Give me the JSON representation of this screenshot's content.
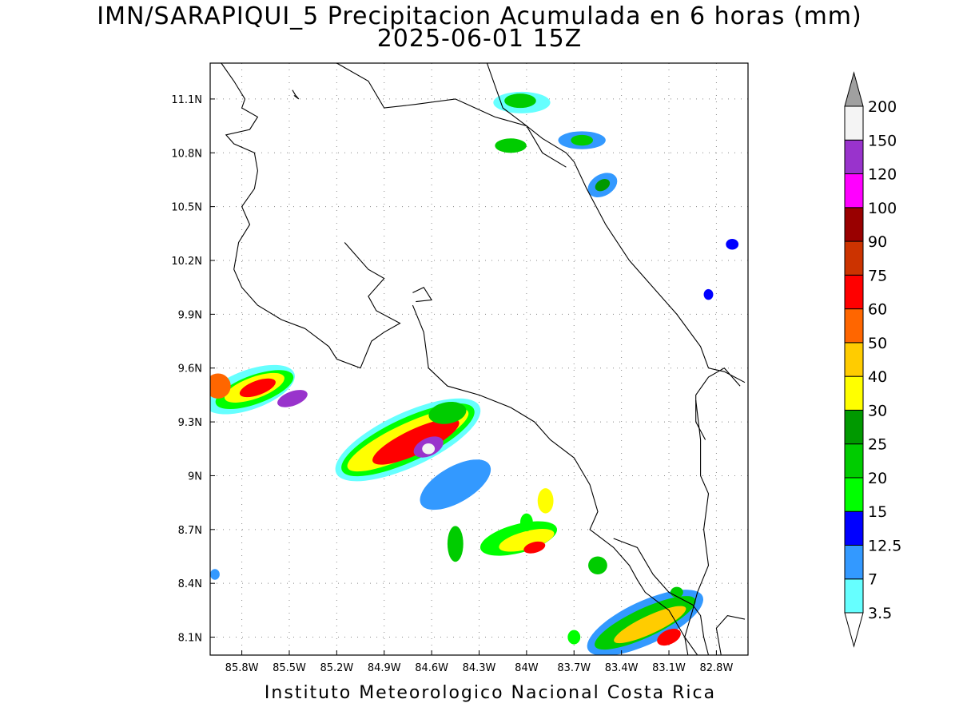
{
  "figure": {
    "title_line1": "IMN/SARAPIQUI_5 Precipitacion Acumulada en 6 horas (mm)",
    "title_line2": "2025-06-01 15Z",
    "footer": "Instituto Meteorologico Nacional Costa Rica"
  },
  "map": {
    "lon_range": [
      -86.0,
      -82.6
    ],
    "lat_range": [
      8.0,
      11.3
    ],
    "lon_ticks": [
      {
        "value": -85.8,
        "label": "85.8W"
      },
      {
        "value": -85.5,
        "label": "85.5W"
      },
      {
        "value": -85.2,
        "label": "85.2W"
      },
      {
        "value": -84.9,
        "label": "84.9W"
      },
      {
        "value": -84.6,
        "label": "84.6W"
      },
      {
        "value": -84.3,
        "label": "84.3W"
      },
      {
        "value": -84.0,
        "label": "84W"
      },
      {
        "value": -83.7,
        "label": "83.7W"
      },
      {
        "value": -83.4,
        "label": "83.4W"
      },
      {
        "value": -83.1,
        "label": "83.1W"
      },
      {
        "value": -82.8,
        "label": "82.8W"
      }
    ],
    "lat_ticks": [
      {
        "value": 11.1,
        "label": "11.1N"
      },
      {
        "value": 10.8,
        "label": "10.8N"
      },
      {
        "value": 10.5,
        "label": "10.5N"
      },
      {
        "value": 10.2,
        "label": "10.2N"
      },
      {
        "value": 9.9,
        "label": "9.9N"
      },
      {
        "value": 9.6,
        "label": "9.6N"
      },
      {
        "value": 9.3,
        "label": "9.3N"
      },
      {
        "value": 9.0,
        "label": "9N"
      },
      {
        "value": 8.7,
        "label": "8.7N"
      },
      {
        "value": 8.4,
        "label": "8.4N"
      },
      {
        "value": 8.1,
        "label": "8.1N"
      }
    ],
    "grid": true
  },
  "colorbar": {
    "levels": [
      {
        "label": "3.5",
        "color": "#66ffff"
      },
      {
        "label": "7",
        "color": "#3399ff"
      },
      {
        "label": "12.5",
        "color": "#0000ff"
      },
      {
        "label": "15",
        "color": "#00ff00"
      },
      {
        "label": "20",
        "color": "#00cc00"
      },
      {
        "label": "25",
        "color": "#009900"
      },
      {
        "label": "30",
        "color": "#ffff00"
      },
      {
        "label": "40",
        "color": "#ffcc00"
      },
      {
        "label": "50",
        "color": "#ff6600"
      },
      {
        "label": "60",
        "color": "#ff0000"
      },
      {
        "label": "75",
        "color": "#cc3300"
      },
      {
        "label": "90",
        "color": "#990000"
      },
      {
        "label": "100",
        "color": "#ff00ff"
      },
      {
        "label": "120",
        "color": "#9933cc"
      },
      {
        "label": "150",
        "color": "#f4f4f4"
      },
      {
        "label": "200",
        "color": "#a0a0a0"
      }
    ]
  },
  "coastlines": [
    [
      [
        -85.93,
        11.3
      ],
      [
        -85.85,
        11.2
      ],
      [
        -85.78,
        11.1
      ],
      [
        -85.8,
        11.05
      ],
      [
        -85.7,
        11.0
      ],
      [
        -85.75,
        10.93
      ],
      [
        -85.9,
        10.9
      ],
      [
        -85.85,
        10.85
      ],
      [
        -85.72,
        10.8
      ],
      [
        -85.7,
        10.7
      ],
      [
        -85.72,
        10.6
      ],
      [
        -85.8,
        10.5
      ],
      [
        -85.75,
        10.4
      ],
      [
        -85.82,
        10.3
      ],
      [
        -85.85,
        10.15
      ],
      [
        -85.8,
        10.05
      ],
      [
        -85.7,
        9.95
      ],
      [
        -85.55,
        9.87
      ],
      [
        -85.4,
        9.82
      ],
      [
        -85.25,
        9.72
      ],
      [
        -85.2,
        9.65
      ],
      [
        -85.05,
        9.6
      ],
      [
        -84.98,
        9.75
      ],
      [
        -84.9,
        9.8
      ],
      [
        -84.8,
        9.85
      ],
      [
        -84.95,
        9.92
      ],
      [
        -85.0,
        10.0
      ],
      [
        -84.9,
        10.1
      ],
      [
        -85.0,
        10.15
      ],
      [
        -85.1,
        10.25
      ],
      [
        -85.15,
        10.3
      ]
    ],
    [
      [
        -84.72,
        9.95
      ],
      [
        -84.65,
        9.8
      ],
      [
        -84.62,
        9.6
      ],
      [
        -84.5,
        9.5
      ],
      [
        -84.3,
        9.45
      ],
      [
        -84.1,
        9.38
      ],
      [
        -83.95,
        9.3
      ],
      [
        -83.85,
        9.2
      ],
      [
        -83.7,
        9.1
      ],
      [
        -83.6,
        8.95
      ],
      [
        -83.55,
        8.8
      ],
      [
        -83.6,
        8.7
      ],
      [
        -83.45,
        8.6
      ],
      [
        -83.35,
        8.5
      ],
      [
        -83.3,
        8.42
      ],
      [
        -83.25,
        8.35
      ],
      [
        -83.1,
        8.25
      ],
      [
        -83.0,
        8.1
      ],
      [
        -82.92,
        8.0
      ]
    ],
    [
      [
        -84.25,
        11.3
      ],
      [
        -84.15,
        11.05
      ],
      [
        -84.0,
        10.95
      ],
      [
        -83.9,
        10.88
      ],
      [
        -83.75,
        10.8
      ],
      [
        -83.7,
        10.75
      ],
      [
        -83.62,
        10.6
      ],
      [
        -83.5,
        10.4
      ],
      [
        -83.35,
        10.2
      ],
      [
        -83.2,
        10.05
      ],
      [
        -83.05,
        9.9
      ],
      [
        -82.9,
        9.72
      ],
      [
        -82.85,
        9.6
      ],
      [
        -82.75,
        9.58
      ],
      [
        -82.62,
        9.52
      ]
    ],
    [
      [
        -83.45,
        8.65
      ],
      [
        -83.3,
        8.6
      ],
      [
        -83.2,
        8.45
      ],
      [
        -83.1,
        8.35
      ],
      [
        -82.95,
        8.28
      ],
      [
        -82.9,
        8.22
      ],
      [
        -82.88,
        8.1
      ],
      [
        -82.85,
        8.0
      ]
    ],
    [
      [
        -82.87,
        9.2
      ],
      [
        -82.93,
        9.3
      ],
      [
        -82.93,
        9.45
      ],
      [
        -82.85,
        9.55
      ],
      [
        -82.75,
        9.6
      ],
      [
        -82.65,
        9.5
      ]
    ],
    [
      [
        -82.77,
        8.0
      ],
      [
        -82.8,
        8.15
      ],
      [
        -82.73,
        8.22
      ],
      [
        -82.62,
        8.2
      ]
    ],
    [
      [
        -84.72,
        10.02
      ],
      [
        -84.65,
        10.05
      ],
      [
        -84.6,
        9.98
      ],
      [
        -84.7,
        9.97
      ]
    ],
    [
      [
        -85.48,
        11.15
      ],
      [
        -85.46,
        11.12
      ],
      [
        -85.44,
        11.1
      ],
      [
        -85.47,
        11.12
      ]
    ]
  ],
  "borders": [
    [
      [
        -85.2,
        11.3
      ],
      [
        -85.0,
        11.2
      ],
      [
        -84.9,
        11.05
      ],
      [
        -84.7,
        11.07
      ],
      [
        -84.45,
        11.1
      ],
      [
        -84.2,
        11.0
      ],
      [
        -84.0,
        10.95
      ],
      [
        -83.9,
        10.8
      ],
      [
        -83.75,
        10.72
      ]
    ],
    [
      [
        -82.93,
        9.42
      ],
      [
        -82.9,
        9.2
      ],
      [
        -82.9,
        9.0
      ],
      [
        -82.85,
        8.9
      ],
      [
        -82.88,
        8.7
      ],
      [
        -82.85,
        8.5
      ],
      [
        -82.92,
        8.35
      ],
      [
        -82.95,
        8.25
      ],
      [
        -83.0,
        8.1
      ],
      [
        -82.98,
        8.0
      ]
    ]
  ],
  "precip_blobs": [
    {
      "lon": -85.75,
      "lat": 9.48,
      "rx": 0.3,
      "ry": 0.11,
      "angle": -20,
      "level": 0
    },
    {
      "lon": -85.72,
      "lat": 9.48,
      "rx": 0.26,
      "ry": 0.08,
      "angle": -20,
      "level": 3
    },
    {
      "lon": -85.72,
      "lat": 9.49,
      "rx": 0.2,
      "ry": 0.06,
      "angle": -20,
      "level": 6
    },
    {
      "lon": -85.7,
      "lat": 9.49,
      "rx": 0.12,
      "ry": 0.04,
      "angle": -20,
      "level": 9
    },
    {
      "lon": -85.48,
      "lat": 9.43,
      "rx": 0.1,
      "ry": 0.04,
      "angle": -20,
      "level": 13
    },
    {
      "lon": -85.95,
      "lat": 9.5,
      "rx": 0.08,
      "ry": 0.07,
      "angle": 0,
      "level": 8
    },
    {
      "lon": -84.75,
      "lat": 9.2,
      "rx": 0.5,
      "ry": 0.15,
      "angle": -25,
      "level": 0
    },
    {
      "lon": -84.75,
      "lat": 9.2,
      "rx": 0.46,
      "ry": 0.12,
      "angle": -25,
      "level": 3
    },
    {
      "lon": -84.75,
      "lat": 9.2,
      "rx": 0.42,
      "ry": 0.09,
      "angle": -25,
      "level": 6
    },
    {
      "lon": -84.7,
      "lat": 9.19,
      "rx": 0.3,
      "ry": 0.07,
      "angle": -25,
      "level": 9
    },
    {
      "lon": -84.62,
      "lat": 9.16,
      "rx": 0.1,
      "ry": 0.05,
      "angle": -25,
      "level": 13
    },
    {
      "lon": -84.62,
      "lat": 9.15,
      "rx": 0.04,
      "ry": 0.03,
      "angle": 0,
      "level": 14
    },
    {
      "lon": -84.45,
      "lat": 8.95,
      "rx": 0.25,
      "ry": 0.1,
      "angle": -30,
      "level": 1
    },
    {
      "lon": -84.05,
      "lat": 8.65,
      "rx": 0.25,
      "ry": 0.08,
      "angle": -15,
      "level": 3
    },
    {
      "lon": -84.0,
      "lat": 8.64,
      "rx": 0.18,
      "ry": 0.05,
      "angle": -15,
      "level": 6
    },
    {
      "lon": -83.95,
      "lat": 8.6,
      "rx": 0.07,
      "ry": 0.03,
      "angle": -15,
      "level": 9
    },
    {
      "lon": -83.25,
      "lat": 8.18,
      "rx": 0.4,
      "ry": 0.12,
      "angle": -25,
      "level": 1
    },
    {
      "lon": -83.25,
      "lat": 8.18,
      "rx": 0.35,
      "ry": 0.08,
      "angle": -25,
      "level": 4
    },
    {
      "lon": -83.22,
      "lat": 8.17,
      "rx": 0.25,
      "ry": 0.05,
      "angle": -25,
      "level": 7
    },
    {
      "lon": -83.1,
      "lat": 8.1,
      "rx": 0.08,
      "ry": 0.04,
      "angle": -25,
      "level": 9
    },
    {
      "lon": -84.03,
      "lat": 11.08,
      "rx": 0.18,
      "ry": 0.06,
      "angle": 0,
      "level": 0
    },
    {
      "lon": -84.04,
      "lat": 11.09,
      "rx": 0.1,
      "ry": 0.04,
      "angle": 0,
      "level": 4
    },
    {
      "lon": -84.1,
      "lat": 10.84,
      "rx": 0.1,
      "ry": 0.04,
      "angle": 0,
      "level": 4
    },
    {
      "lon": -83.65,
      "lat": 10.87,
      "rx": 0.15,
      "ry": 0.05,
      "angle": 0,
      "level": 1
    },
    {
      "lon": -83.65,
      "lat": 10.87,
      "rx": 0.07,
      "ry": 0.03,
      "angle": 0,
      "level": 4
    },
    {
      "lon": -83.52,
      "lat": 10.62,
      "rx": 0.1,
      "ry": 0.06,
      "angle": -30,
      "level": 1
    },
    {
      "lon": -83.52,
      "lat": 10.62,
      "rx": 0.05,
      "ry": 0.03,
      "angle": -30,
      "level": 5
    },
    {
      "lon": -83.88,
      "lat": 8.86,
      "rx": 0.05,
      "ry": 0.07,
      "angle": 0,
      "level": 6
    },
    {
      "lon": -84.45,
      "lat": 8.62,
      "rx": 0.05,
      "ry": 0.1,
      "angle": 0,
      "level": 4
    },
    {
      "lon": -83.55,
      "lat": 8.5,
      "rx": 0.06,
      "ry": 0.05,
      "angle": 0,
      "level": 4
    },
    {
      "lon": -84.5,
      "lat": 9.35,
      "rx": 0.12,
      "ry": 0.06,
      "angle": -10,
      "level": 4
    },
    {
      "lon": -82.85,
      "lat": 10.01,
      "rx": 0.03,
      "ry": 0.03,
      "angle": 0,
      "level": 2
    },
    {
      "lon": -82.7,
      "lat": 10.29,
      "rx": 0.04,
      "ry": 0.03,
      "angle": 0,
      "level": 2
    },
    {
      "lon": -85.97,
      "lat": 8.45,
      "rx": 0.03,
      "ry": 0.03,
      "angle": 0,
      "level": 1
    },
    {
      "lon": -83.7,
      "lat": 8.1,
      "rx": 0.04,
      "ry": 0.04,
      "angle": 0,
      "level": 3
    },
    {
      "lon": -83.05,
      "lat": 8.35,
      "rx": 0.04,
      "ry": 0.03,
      "angle": 0,
      "level": 4
    },
    {
      "lon": -84.0,
      "lat": 8.74,
      "rx": 0.04,
      "ry": 0.05,
      "angle": 0,
      "level": 3
    }
  ]
}
